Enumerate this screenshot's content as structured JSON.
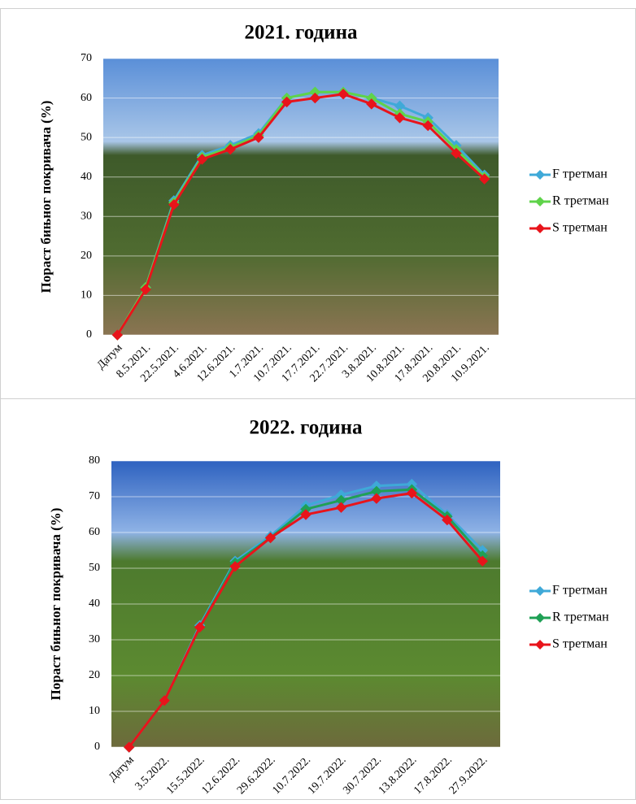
{
  "chart_data": [
    {
      "type": "line",
      "title": "2021. година",
      "y_label": "Пораст бињног покривача (%)",
      "categories": [
        "Датум",
        "8.5.2021.",
        "22.5.2021.",
        "4.6.2021.",
        "12.6.2021.",
        "1.7.2021.",
        "10.7.2021.",
        "17.7.2021.",
        "22.7.2021.",
        "3.8.2021.",
        "10.8.2021.",
        "17.8.2021.",
        "20.8.2021.",
        "10.9.2021."
      ],
      "series": [
        {
          "name": "F третман",
          "color": "#3fa9d8",
          "values": [
            0,
            12,
            34,
            45.5,
            48,
            51,
            60,
            61.5,
            61.5,
            60,
            58,
            55,
            48,
            40.5
          ]
        },
        {
          "name": "R третман",
          "color": "#5fd34a",
          "values": [
            0,
            12,
            33.5,
            45,
            47.5,
            50.5,
            60,
            61.5,
            61.5,
            60,
            56,
            54,
            47,
            40
          ]
        },
        {
          "name": "S третман",
          "color": "#e8141b",
          "values": [
            0,
            11.5,
            33,
            44.5,
            47,
            50,
            59,
            60,
            61,
            58.5,
            55,
            53,
            46,
            39.5
          ]
        }
      ],
      "ylim": [
        0,
        70
      ],
      "yticks": [
        0,
        10,
        20,
        30,
        40,
        50,
        60,
        70
      ],
      "grid": true,
      "legend": "right"
    },
    {
      "type": "line",
      "title": "2022. година",
      "y_label": "Пораст бињног покривача (%)",
      "categories": [
        "Датум",
        "3.5.2022.",
        "15.5.2022.",
        "12.6.2022.",
        "29.6.2022.",
        "10.7.2022.",
        "19.7.2022.",
        "30.7.2022.",
        "13.8.2022.",
        "17.8.2022.",
        "27.9.2022."
      ],
      "series": [
        {
          "name": "F третман",
          "color": "#3fa9d8",
          "values": [
            0,
            13,
            34,
            52,
            59,
            67.5,
            70.5,
            73,
            73.5,
            65,
            55
          ]
        },
        {
          "name": "R третман",
          "color": "#1fa055",
          "values": [
            0,
            13,
            33.5,
            51.5,
            58.5,
            66.5,
            69,
            71.5,
            72,
            64.5,
            53.5
          ]
        },
        {
          "name": "S третман",
          "color": "#e8141b",
          "values": [
            0,
            13,
            33.5,
            50.5,
            58.5,
            65,
            67,
            69.5,
            71,
            63.5,
            52
          ]
        }
      ],
      "ylim": [
        0,
        80
      ],
      "yticks": [
        0,
        10,
        20,
        30,
        40,
        50,
        60,
        70,
        80
      ],
      "grid": true,
      "legend": "right"
    }
  ]
}
